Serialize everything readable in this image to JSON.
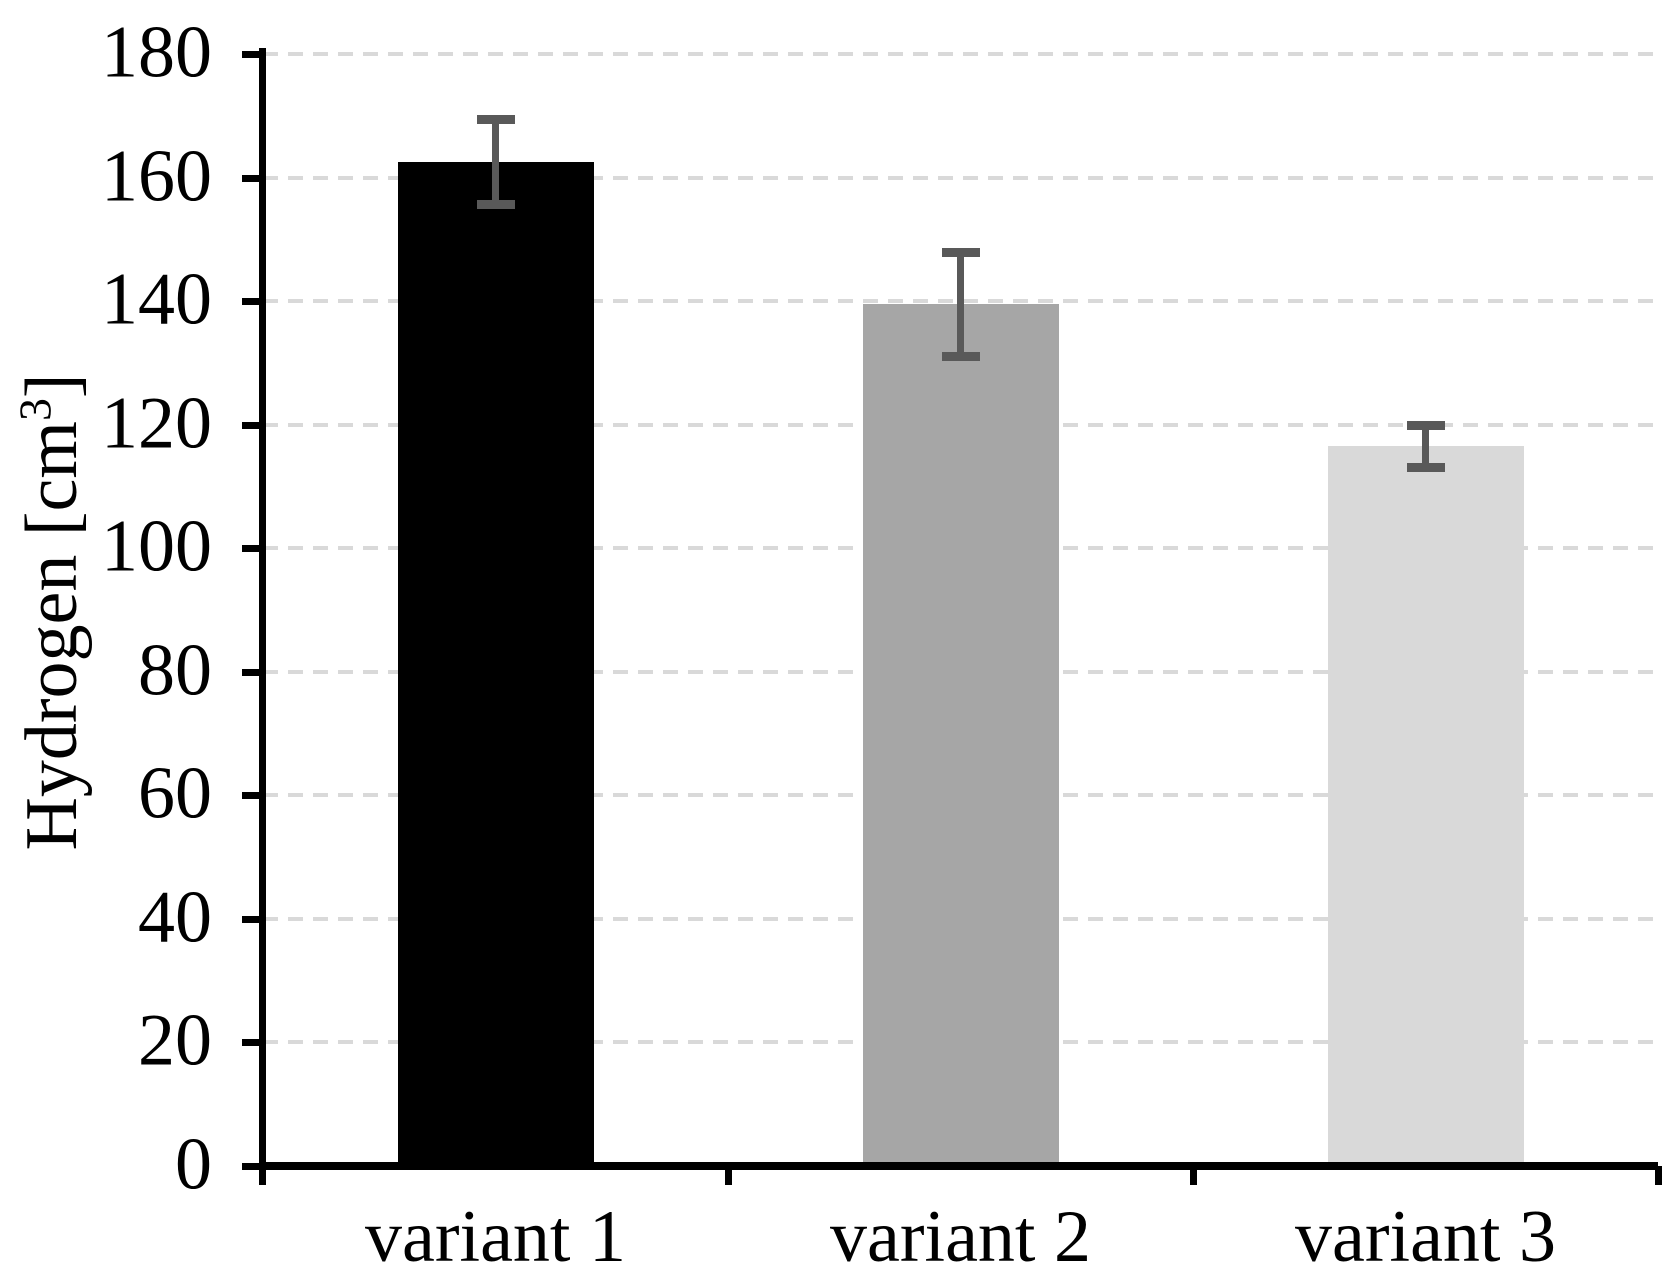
{
  "chart_data": {
    "type": "bar",
    "title": "",
    "categories": [
      "variant 1",
      "variant 2",
      "variant 3"
    ],
    "values": [
      162.5,
      139.5,
      116.5
    ],
    "error_bars": [
      7,
      8.5,
      3.5
    ],
    "xlabel": "",
    "ylabel": "Hydrogen [cm³]",
    "ylabel_parts": {
      "prefix": "Hydrogen [cm",
      "superscript": "3",
      "suffix": "]"
    },
    "ylim": [
      0,
      180
    ],
    "ytick_step": 20,
    "yticks": [
      0,
      20,
      40,
      60,
      80,
      100,
      120,
      140,
      160,
      180
    ],
    "grid": "horizontal-dashed",
    "legend": "none",
    "colors": {
      "bars": [
        "#000000",
        "#a6a6a6",
        "#d9d9d9"
      ],
      "error_bar": "#595959",
      "gridline": "#d9d9d9",
      "axis": "#000000",
      "text": "#000000",
      "background": "#ffffff"
    }
  }
}
